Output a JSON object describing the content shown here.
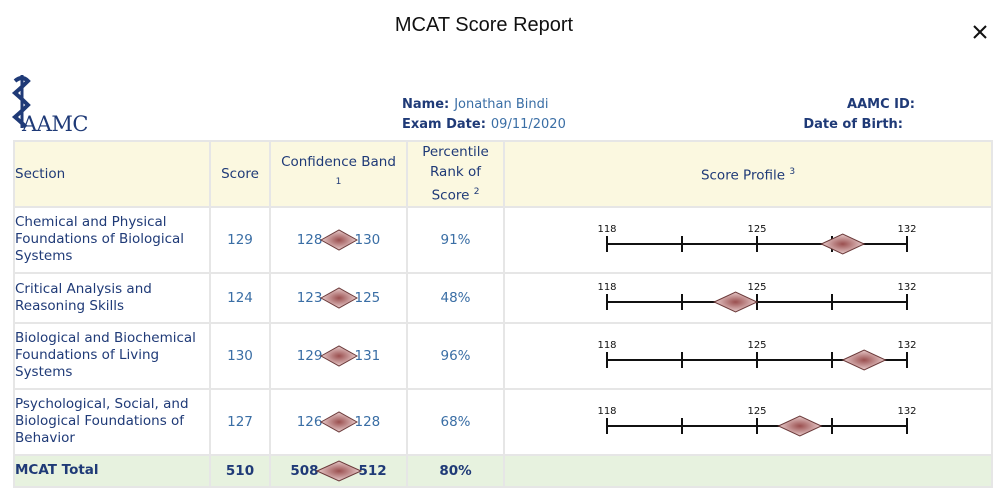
{
  "modal": {
    "title": "MCAT Score Report",
    "close_icon": "close-icon"
  },
  "logo": {
    "text": "AAMC",
    "icon": "caduceus-icon",
    "color": "#1f3a77"
  },
  "candidate": {
    "name_label": "Name:",
    "name": "Jonathan Bindi",
    "exam_date_label": "Exam Date:",
    "exam_date": "09/11/2020",
    "aamc_id_label": "AAMC ID:",
    "aamc_id": "",
    "dob_label": "Date of Birth:",
    "dob": ""
  },
  "table": {
    "headers": {
      "section": "Section",
      "score": "Score",
      "confidence_band": "Confidence Band",
      "confidence_band_note": "1",
      "percentile_line1": "Percentile",
      "percentile_line2": "Rank of",
      "percentile_line3": "Score",
      "percentile_note": "2",
      "profile": "Score Profile",
      "profile_note": "3"
    },
    "rows": [
      {
        "section": "Chemical and Physical Foundations of Biological Systems",
        "score": "129",
        "band_low": "128",
        "band_high": "130",
        "percentile": "91%"
      },
      {
        "section": "Critical Analysis and Reasoning Skills",
        "score": "124",
        "band_low": "123",
        "band_high": "125",
        "percentile": "48%"
      },
      {
        "section": "Biological and Biochemical Foundations of Living Systems",
        "score": "130",
        "band_low": "129",
        "band_high": "131",
        "percentile": "96%"
      },
      {
        "section": "Psychological, Social, and Biological Foundations of Behavior",
        "score": "127",
        "band_low": "126",
        "band_high": "128",
        "percentile": "68%"
      }
    ],
    "total": {
      "section": "MCAT Total",
      "score": "510",
      "band_low": "508",
      "band_high": "512",
      "percentile": "80%"
    }
  },
  "profile_scale": {
    "min": 118,
    "mid": 125,
    "max": 132,
    "label_min": "118",
    "label_mid": "125",
    "label_max": "132"
  },
  "colors": {
    "header_bg": "#fbf8e0",
    "total_bg": "#e7f2df",
    "diamond": "#b47a7a",
    "text": "#1f3a77"
  }
}
